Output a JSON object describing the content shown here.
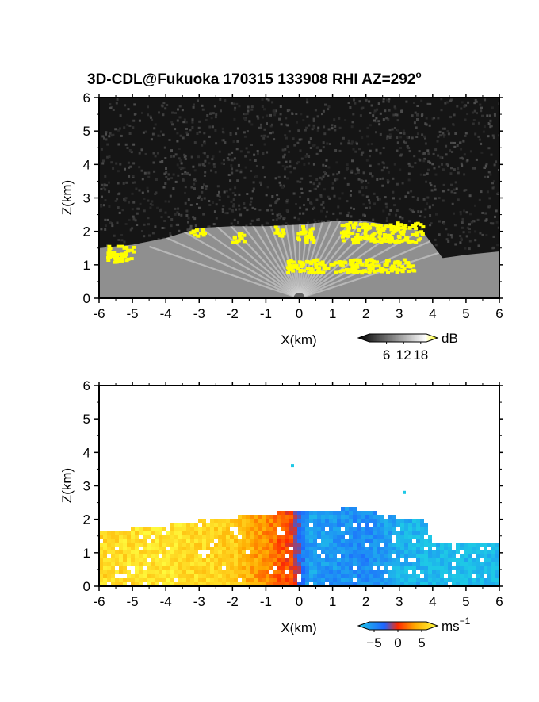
{
  "title": "3D-CDL@Fukuoka 170315 133908 RHI AZ=292",
  "title_superscript": "o",
  "colors": {
    "frame": "#000000",
    "snr_low": "#000000",
    "snr_high": "#ffffff",
    "snr_sat": "#ffff00",
    "vel_neg_max": "#1ec8e6",
    "vel_neg": "#1e64ff",
    "vel_zero": "#ff2a00",
    "vel_pos": "#ffaa00",
    "vel_pos_max": "#ffff40"
  },
  "chart_data": [
    {
      "type": "heatmap",
      "name": "snr",
      "xlabel": "X(km)",
      "ylabel": "Z(km)",
      "xlim": [
        -6,
        6
      ],
      "ylim": [
        0,
        6
      ],
      "x_ticks": [
        "-6",
        "-5",
        "-4",
        "-3",
        "-2",
        "-1",
        "0",
        "1",
        "2",
        "3",
        "4",
        "5",
        "6"
      ],
      "y_ticks": [
        "0",
        "1",
        "2",
        "3",
        "4",
        "5",
        "6"
      ],
      "colorbar": {
        "unit": "dB",
        "ticks": [
          "6",
          "12",
          "18"
        ],
        "tick_values": [
          6,
          12,
          18
        ],
        "range": [
          0,
          20
        ]
      },
      "echo_top_profile": [
        [
          -6,
          1.5
        ],
        [
          -5,
          1.6
        ],
        [
          -4,
          1.8
        ],
        [
          -3,
          2.1
        ],
        [
          -2,
          2.15
        ],
        [
          -1,
          2.15
        ],
        [
          0,
          2.2
        ],
        [
          1,
          2.3
        ],
        [
          2,
          2.3
        ],
        [
          3,
          2.15
        ],
        [
          3.7,
          2.0
        ],
        [
          4.3,
          1.2
        ],
        [
          5,
          1.3
        ],
        [
          6,
          1.4
        ]
      ],
      "saturated_regions": [
        {
          "x": [
            -5.8,
            -5.0
          ],
          "z": [
            1.1,
            1.6
          ]
        },
        {
          "x": [
            -3.3,
            -2.8
          ],
          "z": [
            1.9,
            2.1
          ]
        },
        {
          "x": [
            -2.1,
            -1.7
          ],
          "z": [
            1.7,
            2.0
          ]
        },
        {
          "x": [
            -0.8,
            -0.5
          ],
          "z": [
            1.9,
            2.2
          ]
        },
        {
          "x": [
            -0.1,
            0.4
          ],
          "z": [
            1.7,
            2.2
          ]
        },
        {
          "x": [
            1.2,
            3.7
          ],
          "z": [
            1.7,
            2.3
          ]
        },
        {
          "x": [
            -0.4,
            3.4
          ],
          "z": [
            0.8,
            1.2
          ]
        }
      ]
    },
    {
      "type": "heatmap",
      "name": "velocity",
      "xlabel": "X(km)",
      "ylabel": "Z(km)",
      "xlim": [
        -6,
        6
      ],
      "ylim": [
        0,
        6
      ],
      "x_ticks": [
        "-6",
        "-5",
        "-4",
        "-3",
        "-2",
        "-1",
        "0",
        "1",
        "2",
        "3",
        "4",
        "5",
        "6"
      ],
      "y_ticks": [
        "0",
        "1",
        "2",
        "3",
        "4",
        "5",
        "6"
      ],
      "colorbar": {
        "unit": "ms",
        "unit_exponent": "−1",
        "ticks": [
          "−5",
          "0",
          "5"
        ],
        "tick_values": [
          -5,
          0,
          5
        ],
        "range": [
          -6,
          6
        ]
      },
      "data_top_profile": [
        [
          -6,
          1.6
        ],
        [
          -4.5,
          1.7
        ],
        [
          -3,
          1.9
        ],
        [
          -2,
          2.0
        ],
        [
          -1,
          2.1
        ],
        [
          0,
          2.2
        ],
        [
          1,
          2.2
        ],
        [
          1.5,
          2.3
        ],
        [
          2,
          2.2
        ],
        [
          3,
          2.0
        ],
        [
          3.8,
          1.9
        ],
        [
          4,
          1.2
        ],
        [
          5,
          1.3
        ],
        [
          6,
          1.3
        ]
      ],
      "velocity_profile": [
        [
          -6,
          4.5
        ],
        [
          -4,
          5.0
        ],
        [
          -2,
          4.0
        ],
        [
          -1,
          2.0
        ],
        [
          -0.2,
          0.3
        ],
        [
          0.3,
          -4.5
        ],
        [
          1,
          -4.0
        ],
        [
          2,
          -3.5
        ],
        [
          3,
          -5.0
        ],
        [
          4,
          -5.5
        ],
        [
          6,
          -5.5
        ]
      ],
      "isolated_points": [
        [
          -0.25,
          3.65
        ],
        [
          3.1,
          2.85
        ]
      ]
    }
  ]
}
